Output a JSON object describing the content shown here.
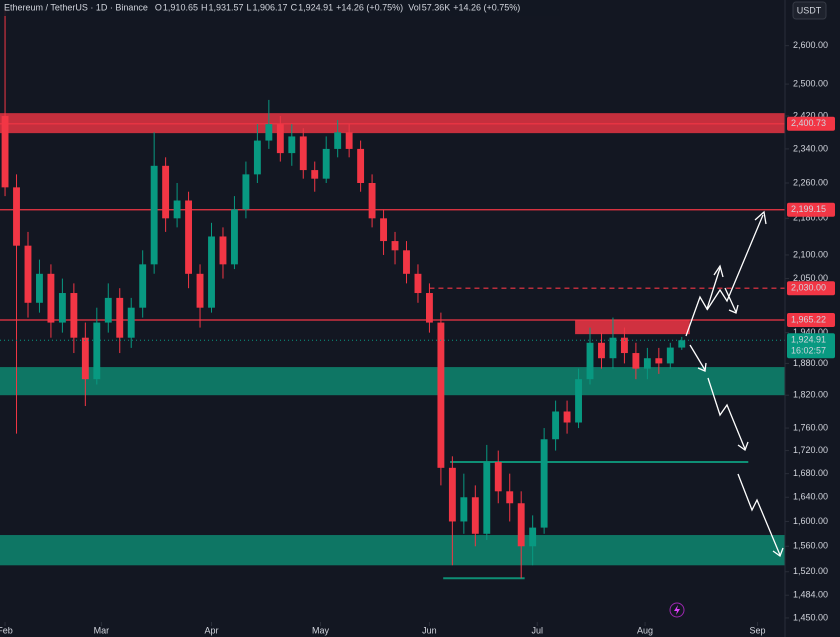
{
  "chart_data": {
    "type": "candlestick",
    "title": "Ethereum / TetherUS · 1D · Binance",
    "legend_items": [
      {
        "key": "O",
        "value": "1,910.65"
      },
      {
        "key": "H",
        "value": "1,931.57"
      },
      {
        "key": "L",
        "value": "1,906.17"
      },
      {
        "key": "C",
        "value": "1,924.91"
      }
    ],
    "change": "+14.26 (+0.75%)",
    "volume_key": "Vol",
    "volume": "57.36K",
    "volume_change": "+14.26 (+0.75%)",
    "currency": "USDT",
    "log": true,
    "up_color": "#089981",
    "down_color": "#f23645",
    "x": [
      0,
      1,
      2,
      3,
      4,
      5,
      6,
      7,
      8,
      9,
      10,
      11,
      12,
      13,
      14,
      15,
      16,
      17,
      18,
      19,
      20,
      21,
      22,
      23,
      24,
      25,
      26,
      27,
      28,
      29,
      30,
      31,
      32,
      33,
      34,
      35,
      36,
      37,
      38,
      39,
      40,
      41,
      42,
      43,
      44,
      45,
      46,
      47,
      48,
      49,
      50,
      51,
      52,
      53,
      54,
      55,
      56,
      57,
      58,
      59
    ],
    "open": [
      2420,
      2250,
      2120,
      2000,
      2060,
      1960,
      2020,
      1930,
      1850,
      1960,
      2010,
      1930,
      1990,
      2080,
      2300,
      2180,
      2220,
      2060,
      1990,
      2140,
      2080,
      2200,
      2280,
      2360,
      2400,
      2330,
      2370,
      2290,
      2270,
      2340,
      2380,
      2340,
      2260,
      2180,
      2130,
      2110,
      2060,
      2020,
      1960,
      1690,
      1600,
      1640,
      1580,
      1700,
      1650,
      1630,
      1560,
      1590,
      1740,
      1790,
      1770,
      1850,
      1920,
      1890,
      1930,
      1900,
      1870,
      1890,
      1880,
      1910.65
    ],
    "high": [
      2700,
      2280,
      2150,
      2090,
      2080,
      2050,
      2040,
      1960,
      1990,
      2040,
      2030,
      2010,
      2110,
      2380,
      2320,
      2260,
      2240,
      2080,
      2170,
      2160,
      2230,
      2310,
      2400,
      2460,
      2420,
      2400,
      2390,
      2310,
      2370,
      2410,
      2400,
      2360,
      2280,
      2200,
      2150,
      2130,
      2080,
      2040,
      1980,
      1710,
      1680,
      1660,
      1730,
      1720,
      1680,
      1650,
      1610,
      1760,
      1810,
      1810,
      1870,
      1950,
      1940,
      1970,
      1950,
      1920,
      1910,
      1910,
      1920,
      1931.57
    ],
    "low": [
      2230,
      1750,
      1970,
      1980,
      1930,
      1940,
      1900,
      1800,
      1840,
      1940,
      1900,
      1910,
      1970,
      2060,
      2150,
      2160,
      2030,
      1950,
      1980,
      2050,
      2070,
      2180,
      2260,
      2340,
      2310,
      2300,
      2270,
      2240,
      2260,
      2320,
      2320,
      2240,
      2160,
      2100,
      2080,
      2040,
      2000,
      1940,
      1660,
      1530,
      1580,
      1560,
      1570,
      1630,
      1600,
      1510,
      1530,
      1580,
      1720,
      1750,
      1760,
      1840,
      1870,
      1870,
      1880,
      1850,
      1850,
      1860,
      1870,
      1906.17
    ],
    "close": [
      2250,
      2120,
      2000,
      2060,
      1960,
      2020,
      1930,
      1850,
      1960,
      2010,
      1930,
      1990,
      2080,
      2300,
      2180,
      2220,
      2060,
      1990,
      2140,
      2080,
      2200,
      2280,
      2360,
      2400,
      2330,
      2370,
      2290,
      2270,
      2340,
      2380,
      2340,
      2260,
      2180,
      2130,
      2110,
      2060,
      2020,
      1960,
      1690,
      1600,
      1640,
      1580,
      1700,
      1650,
      1630,
      1560,
      1590,
      1740,
      1790,
      1770,
      1850,
      1920,
      1890,
      1930,
      1900,
      1870,
      1890,
      1880,
      1910.65,
      1924.91
    ],
    "xlim": [
      -0.44,
      68
    ],
    "xticks": [
      {
        "value": 0,
        "label": "Feb"
      },
      {
        "value": 8.4,
        "label": "Mar"
      },
      {
        "value": 18,
        "label": "Apr"
      },
      {
        "value": 27.5,
        "label": "May"
      },
      {
        "value": 37,
        "label": "Jun"
      },
      {
        "value": 46.4,
        "label": "Jul"
      },
      {
        "value": 55.8,
        "label": "Aug"
      },
      {
        "value": 65.6,
        "label": "Sep"
      }
    ],
    "ylim": [
      1444,
      2724
    ],
    "yticks": [
      {
        "value": 2600,
        "label": "2,600.00"
      },
      {
        "value": 2500,
        "label": "2,500.00"
      },
      {
        "value": 2420,
        "label": "2,420.00"
      },
      {
        "value": 2340,
        "label": "2,340.00"
      },
      {
        "value": 2260,
        "label": "2,260.00"
      },
      {
        "value": 2180,
        "label": "2,180.00"
      },
      {
        "value": 2100,
        "label": "2,100.00"
      },
      {
        "value": 2050,
        "label": "2,050.00"
      },
      {
        "value": 1940,
        "label": "1,940.00"
      },
      {
        "value": 1880,
        "label": "1,880.00"
      },
      {
        "value": 1820,
        "label": "1,820.00"
      },
      {
        "value": 1760,
        "label": "1,760.00"
      },
      {
        "value": 1720,
        "label": "1,720.00"
      },
      {
        "value": 1680,
        "label": "1,680.00"
      },
      {
        "value": 1640,
        "label": "1,640.00"
      },
      {
        "value": 1600,
        "label": "1,600.00"
      },
      {
        "value": 1560,
        "label": "1,560.00"
      },
      {
        "value": 1520,
        "label": "1,520.00"
      },
      {
        "value": 1484,
        "label": "1,484.00"
      },
      {
        "value": 1450,
        "label": "1,450.00"
      }
    ],
    "zones": [
      {
        "low": 2378,
        "high": 2427,
        "color": "#f23645"
      },
      {
        "low": 1820,
        "high": 1873,
        "color": "#0e8f75"
      },
      {
        "low": 1530,
        "high": 1578,
        "color": "#0e8f75"
      },
      {
        "low": 1937,
        "high": 1966,
        "color": "#f23645",
        "x_from": 49.7,
        "x_to": 59.7
      }
    ],
    "segments": [
      {
        "value": 1700,
        "color": "#0e8f75",
        "x_from": 38.8,
        "x_to": 64.8
      },
      {
        "value": 1510,
        "color": "#0e8f75",
        "x_from": 38.2,
        "x_to": 45.3
      }
    ],
    "levels": [
      {
        "value": 2400.73,
        "label": "2,400.73",
        "color": "#f23645"
      },
      {
        "value": 2199.15,
        "label": "2,199.15",
        "color": "#f23645"
      },
      {
        "value": 2030,
        "label": "2,030.00",
        "color": "#f23645",
        "dashed": true,
        "x_from": 37
      },
      {
        "value": 1965.22,
        "label": "1,965.22",
        "color": "#f23645"
      }
    ],
    "last_price": {
      "value": 1924.91,
      "label": "1,924.91",
      "color": "#089981"
    },
    "countdown": "16:02:57"
  }
}
